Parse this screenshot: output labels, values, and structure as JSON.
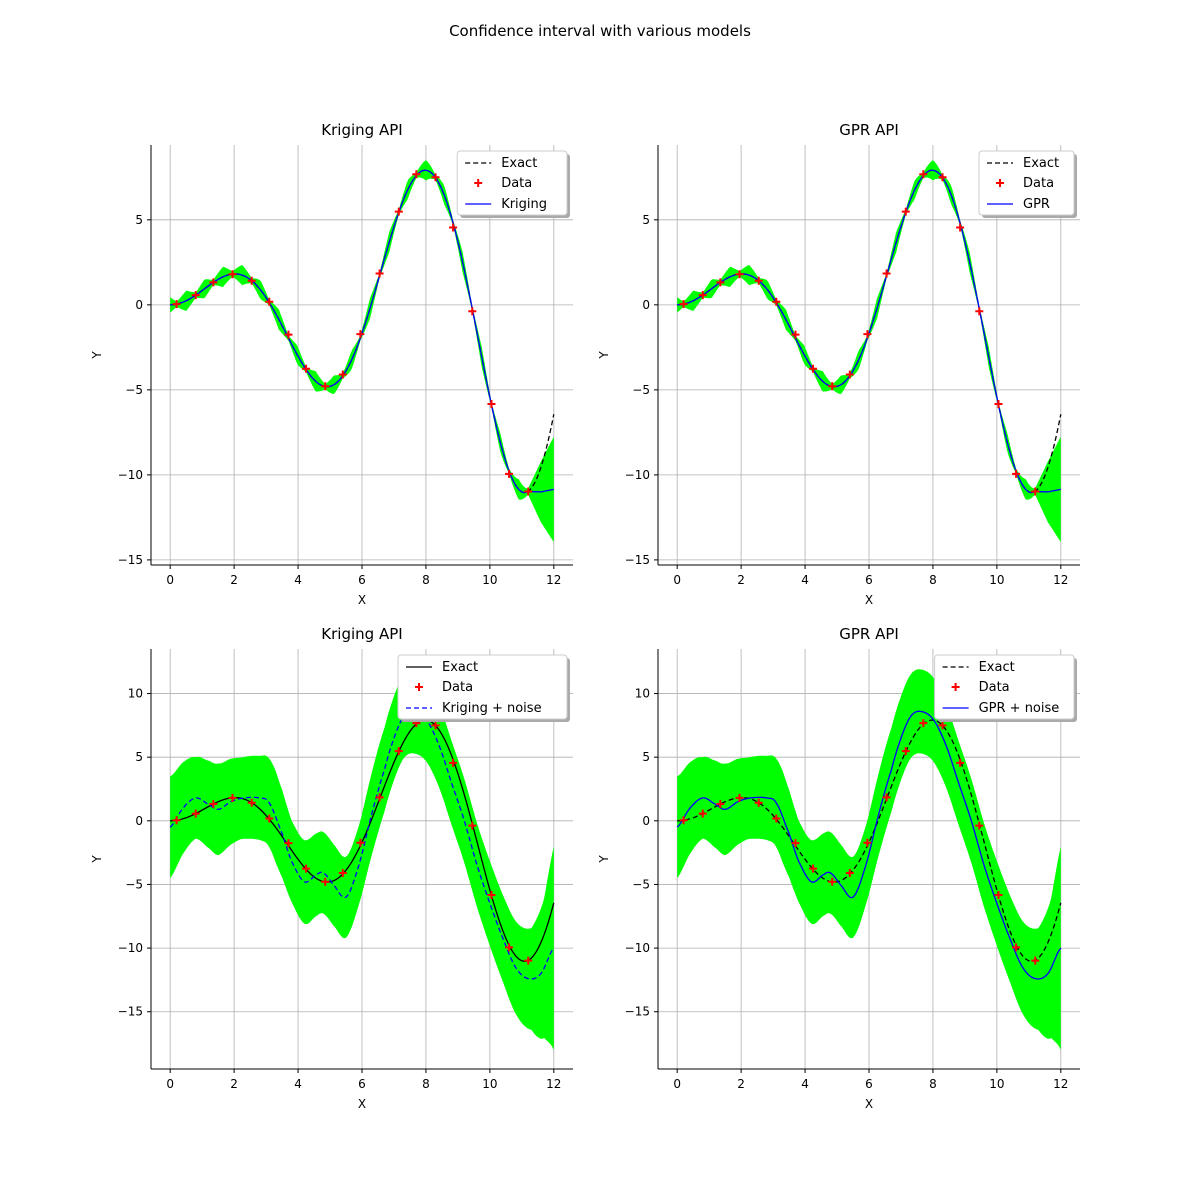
{
  "figure_title": "Confidence interval with various models",
  "colors": {
    "band": "#00ff00",
    "model": "#0000ff",
    "exact": "#000000",
    "data": "#ff0000",
    "grid": "#b0b0b0"
  },
  "chart_data": [
    {
      "type": "line",
      "title": "Kriging API",
      "xlabel": "X",
      "ylabel": "Y",
      "xlim": [
        -0.6,
        12.6
      ],
      "ylim": [
        -15.3,
        9.4
      ],
      "xticks": [
        0,
        2,
        4,
        6,
        8,
        10,
        12
      ],
      "yticks": [
        -15,
        -10,
        -5,
        0,
        5
      ],
      "grid": true,
      "legend_position": "top-right",
      "legend": [
        "Exact",
        "Data",
        "Kriging"
      ],
      "exact_style": "dashed",
      "model_style": "solid",
      "noise": false,
      "data_x": [
        0.2,
        0.8,
        1.35,
        1.95,
        2.55,
        3.1,
        3.7,
        4.25,
        4.85,
        5.4,
        5.95,
        6.55,
        7.15,
        7.7,
        8.3,
        8.85,
        9.45,
        10.05,
        10.6,
        11.2
      ],
      "data_y": [
        0.04,
        0.57,
        1.32,
        1.8,
        1.42,
        0.18,
        -1.75,
        -3.76,
        -4.79,
        -4.1,
        -1.72,
        1.84,
        5.48,
        7.68,
        7.5,
        4.55,
        -0.38,
        -5.83,
        -9.94,
        -10.98
      ],
      "model_tail": [
        [
          11.2,
          -10.98
        ],
        [
          11.6,
          -11.0
        ],
        [
          12.0,
          -10.85
        ]
      ],
      "band_halfwidth": {
        "base": 0.15,
        "bump": 0.45,
        "tail": [
          [
            11.2,
            0.2
          ],
          [
            11.6,
            1.8
          ],
          [
            12.0,
            3.1
          ]
        ]
      }
    },
    {
      "type": "line",
      "title": "GPR API",
      "xlabel": "X",
      "ylabel": "Y",
      "xlim": [
        -0.6,
        12.6
      ],
      "ylim": [
        -15.3,
        9.4
      ],
      "xticks": [
        0,
        2,
        4,
        6,
        8,
        10,
        12
      ],
      "yticks": [
        -15,
        -10,
        -5,
        0,
        5
      ],
      "grid": true,
      "legend_position": "top-right",
      "legend": [
        "Exact",
        "Data",
        "GPR"
      ],
      "exact_style": "dashed",
      "model_style": "solid",
      "noise": false,
      "data_x": [
        0.2,
        0.8,
        1.35,
        1.95,
        2.55,
        3.1,
        3.7,
        4.25,
        4.85,
        5.4,
        5.95,
        6.55,
        7.15,
        7.7,
        8.3,
        8.85,
        9.45,
        10.05,
        10.6,
        11.2
      ],
      "data_y": [
        0.04,
        0.57,
        1.32,
        1.8,
        1.42,
        0.18,
        -1.75,
        -3.76,
        -4.79,
        -4.1,
        -1.72,
        1.84,
        5.48,
        7.68,
        7.5,
        4.55,
        -0.38,
        -5.83,
        -9.94,
        -10.98
      ],
      "model_tail": [
        [
          11.2,
          -10.98
        ],
        [
          11.6,
          -11.0
        ],
        [
          12.0,
          -10.85
        ]
      ],
      "band_halfwidth": {
        "base": 0.15,
        "bump": 0.45,
        "tail": [
          [
            11.2,
            0.2
          ],
          [
            11.6,
            1.8
          ],
          [
            12.0,
            3.1
          ]
        ]
      }
    },
    {
      "type": "line",
      "title": "Kriging API",
      "xlabel": "X",
      "ylabel": "Y",
      "xlim": [
        -0.6,
        12.6
      ],
      "ylim": [
        -19.5,
        13.5
      ],
      "xticks": [
        0,
        2,
        4,
        6,
        8,
        10,
        12
      ],
      "yticks": [
        -15,
        -10,
        -5,
        0,
        5,
        10
      ],
      "grid": true,
      "legend_position": "top-right",
      "legend": [
        "Exact",
        "Data",
        "Kriging + noise"
      ],
      "exact_style": "solid",
      "model_style": "dashed",
      "noise": true,
      "data_x": [
        0.2,
        0.8,
        1.35,
        1.95,
        2.55,
        3.1,
        3.7,
        4.25,
        4.85,
        5.4,
        5.95,
        6.55,
        7.15,
        7.7,
        8.3,
        8.85,
        9.45,
        10.05,
        10.6,
        11.2
      ],
      "data_y": [
        0.04,
        0.57,
        1.32,
        1.8,
        1.42,
        0.18,
        -1.75,
        -3.76,
        -4.79,
        -4.1,
        -1.72,
        1.84,
        5.48,
        7.68,
        7.5,
        4.55,
        -0.38,
        -5.83,
        -9.94,
        -10.98
      ],
      "model_points": [
        [
          0,
          -0.5
        ],
        [
          0.4,
          1.0
        ],
        [
          0.8,
          1.8
        ],
        [
          1.2,
          1.3
        ],
        [
          1.5,
          0.9
        ],
        [
          1.9,
          1.5
        ],
        [
          2.3,
          1.8
        ],
        [
          2.8,
          1.8
        ],
        [
          3.1,
          1.4
        ],
        [
          3.5,
          -1.0
        ],
        [
          3.8,
          -3.2
        ],
        [
          4.2,
          -4.8
        ],
        [
          4.6,
          -4.2
        ],
        [
          4.8,
          -4.1
        ],
        [
          5.1,
          -5.0
        ],
        [
          5.5,
          -6.0
        ],
        [
          5.9,
          -3.5
        ],
        [
          6.3,
          0.5
        ],
        [
          6.7,
          4.0
        ],
        [
          7.0,
          6.5
        ],
        [
          7.3,
          8.2
        ],
        [
          7.6,
          8.6
        ],
        [
          8.0,
          8.0
        ],
        [
          8.4,
          6.0
        ],
        [
          8.8,
          3.0
        ],
        [
          9.2,
          0.0
        ],
        [
          9.6,
          -3.5
        ],
        [
          10.0,
          -6.5
        ],
        [
          10.4,
          -9.2
        ],
        [
          10.8,
          -11.5
        ],
        [
          11.2,
          -12.4
        ],
        [
          11.6,
          -12.0
        ],
        [
          12.0,
          -10.0
        ]
      ],
      "band_halfwidth": {
        "points": [
          [
            0,
            4.0
          ],
          [
            0.4,
            3.6
          ],
          [
            0.8,
            3.2
          ],
          [
            1.5,
            3.6
          ],
          [
            2.2,
            3.2
          ],
          [
            2.8,
            3.3
          ],
          [
            3.3,
            3.6
          ],
          [
            3.8,
            3.2
          ],
          [
            4.3,
            3.3
          ],
          [
            4.8,
            3.2
          ],
          [
            5.4,
            3.2
          ],
          [
            5.9,
            3.1
          ],
          [
            6.5,
            3.3
          ],
          [
            7.0,
            3.3
          ],
          [
            7.5,
            3.3
          ],
          [
            8.0,
            3.3
          ],
          [
            8.6,
            3.3
          ],
          [
            9.2,
            3.3
          ],
          [
            9.8,
            3.3
          ],
          [
            10.4,
            3.4
          ],
          [
            10.9,
            3.7
          ],
          [
            11.3,
            4.0
          ],
          [
            11.7,
            5.5
          ],
          [
            12.0,
            8.0
          ]
        ]
      }
    },
    {
      "type": "line",
      "title": "GPR API",
      "xlabel": "X",
      "ylabel": "Y",
      "xlim": [
        -0.6,
        12.6
      ],
      "ylim": [
        -19.5,
        13.5
      ],
      "xticks": [
        0,
        2,
        4,
        6,
        8,
        10,
        12
      ],
      "yticks": [
        -15,
        -10,
        -5,
        0,
        5,
        10
      ],
      "grid": true,
      "legend_position": "top-right",
      "legend": [
        "Exact",
        "Data",
        "GPR + noise"
      ],
      "exact_style": "dashed",
      "model_style": "solid",
      "noise": true,
      "data_x": [
        0.2,
        0.8,
        1.35,
        1.95,
        2.55,
        3.1,
        3.7,
        4.25,
        4.85,
        5.4,
        5.95,
        6.55,
        7.15,
        7.7,
        8.3,
        8.85,
        9.45,
        10.05,
        10.6,
        11.2
      ],
      "data_y": [
        0.04,
        0.57,
        1.32,
        1.8,
        1.42,
        0.18,
        -1.75,
        -3.76,
        -4.79,
        -4.1,
        -1.72,
        1.84,
        5.48,
        7.68,
        7.5,
        4.55,
        -0.38,
        -5.83,
        -9.94,
        -10.98
      ],
      "model_points": [
        [
          0,
          -0.5
        ],
        [
          0.4,
          1.0
        ],
        [
          0.8,
          1.8
        ],
        [
          1.2,
          1.3
        ],
        [
          1.5,
          0.9
        ],
        [
          1.9,
          1.5
        ],
        [
          2.3,
          1.8
        ],
        [
          2.8,
          1.8
        ],
        [
          3.1,
          1.4
        ],
        [
          3.5,
          -1.0
        ],
        [
          3.8,
          -3.2
        ],
        [
          4.2,
          -4.8
        ],
        [
          4.6,
          -4.2
        ],
        [
          4.8,
          -4.1
        ],
        [
          5.1,
          -5.0
        ],
        [
          5.5,
          -6.0
        ],
        [
          5.9,
          -3.5
        ],
        [
          6.3,
          0.5
        ],
        [
          6.7,
          4.0
        ],
        [
          7.0,
          6.5
        ],
        [
          7.3,
          8.2
        ],
        [
          7.6,
          8.6
        ],
        [
          8.0,
          8.0
        ],
        [
          8.4,
          6.0
        ],
        [
          8.8,
          3.0
        ],
        [
          9.2,
          0.0
        ],
        [
          9.6,
          -3.5
        ],
        [
          10.0,
          -6.5
        ],
        [
          10.4,
          -9.2
        ],
        [
          10.8,
          -11.5
        ],
        [
          11.2,
          -12.4
        ],
        [
          11.6,
          -12.0
        ],
        [
          12.0,
          -10.0
        ]
      ],
      "band_halfwidth": {
        "points": [
          [
            0,
            4.0
          ],
          [
            0.4,
            3.6
          ],
          [
            0.8,
            3.2
          ],
          [
            1.5,
            3.6
          ],
          [
            2.2,
            3.2
          ],
          [
            2.8,
            3.3
          ],
          [
            3.3,
            3.6
          ],
          [
            3.8,
            3.2
          ],
          [
            4.3,
            3.3
          ],
          [
            4.8,
            3.2
          ],
          [
            5.4,
            3.2
          ],
          [
            5.9,
            3.1
          ],
          [
            6.5,
            3.3
          ],
          [
            7.0,
            3.3
          ],
          [
            7.5,
            3.3
          ],
          [
            8.0,
            3.3
          ],
          [
            8.6,
            3.3
          ],
          [
            9.2,
            3.3
          ],
          [
            9.8,
            3.3
          ],
          [
            10.4,
            3.4
          ],
          [
            10.9,
            3.7
          ],
          [
            11.3,
            4.0
          ],
          [
            11.7,
            5.5
          ],
          [
            12.0,
            8.0
          ]
        ]
      }
    }
  ]
}
